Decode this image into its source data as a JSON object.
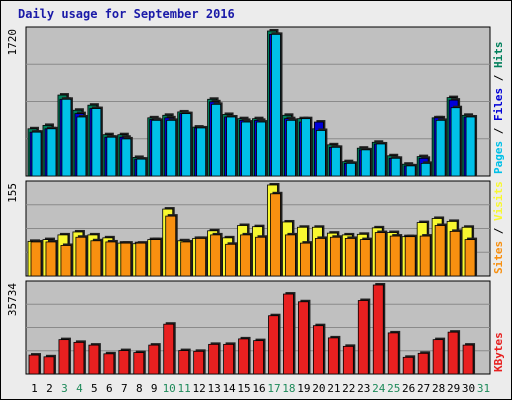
{
  "title": "Daily usage for September 2016",
  "colors": {
    "background": "#ececec",
    "plot_bg": "#c0c0c0",
    "grid": "#8a8a8a",
    "hits": "#00805c",
    "files": "#0000d8",
    "pages": "#00c0e8",
    "visits": "#f8f830",
    "sites": "#f89010",
    "kbytes": "#e82020",
    "weekend_label": "#1e8a5a",
    "weekday_label": "#000000",
    "title_text": "#1a1aa8"
  },
  "chart_data": [
    {
      "type": "bar",
      "panel": "hits-files-pages",
      "axis_max_label": "1720",
      "ylim": [
        0,
        1720
      ],
      "categories": [
        "1",
        "2",
        "3",
        "4",
        "5",
        "6",
        "7",
        "8",
        "9",
        "10",
        "11",
        "12",
        "13",
        "14",
        "15",
        "16",
        "17",
        "18",
        "19",
        "20",
        "21",
        "22",
        "23",
        "24",
        "25",
        "26",
        "27",
        "28",
        "29",
        "30",
        "31"
      ],
      "series": [
        {
          "name": "Hits",
          "color": "#00805c",
          "values": [
            560,
            600,
            960,
            780,
            840,
            490,
            490,
            220,
            690,
            720,
            760,
            580,
            910,
            730,
            680,
            680,
            1720,
            720,
            680,
            560,
            370,
            170,
            330,
            400,
            240,
            140,
            230,
            690,
            930,
            720,
            0
          ]
        },
        {
          "name": "Files",
          "color": "#0000d8",
          "values": [
            520,
            560,
            910,
            740,
            800,
            460,
            460,
            200,
            670,
            690,
            740,
            570,
            880,
            700,
            660,
            660,
            1680,
            680,
            640,
            640,
            340,
            150,
            310,
            380,
            210,
            120,
            210,
            690,
            900,
            700,
            0
          ]
        },
        {
          "name": "Pages",
          "color": "#00c0e8",
          "values": [
            520,
            560,
            910,
            700,
            800,
            460,
            440,
            200,
            660,
            660,
            740,
            570,
            850,
            700,
            640,
            640,
            1680,
            660,
            680,
            540,
            340,
            150,
            310,
            380,
            210,
            120,
            150,
            660,
            810,
            700,
            0
          ]
        }
      ],
      "legend": [
        "Pages",
        "Files",
        "Hits"
      ],
      "legend_placement": "right"
    },
    {
      "type": "bar",
      "panel": "visits-sites",
      "axis_max_label": "155",
      "ylim": [
        0,
        155
      ],
      "categories": [
        "1",
        "2",
        "3",
        "4",
        "5",
        "6",
        "7",
        "8",
        "9",
        "10",
        "11",
        "12",
        "13",
        "14",
        "15",
        "16",
        "17",
        "18",
        "19",
        "20",
        "21",
        "22",
        "23",
        "24",
        "25",
        "26",
        "27",
        "28",
        "29",
        "30",
        "31"
      ],
      "series": [
        {
          "name": "Visits",
          "color": "#f8f830",
          "values": [
            59,
            62,
            70,
            75,
            70,
            65,
            56,
            55,
            62,
            114,
            60,
            64,
            77,
            65,
            86,
            84,
            155,
            92,
            83,
            83,
            73,
            70,
            71,
            82,
            74,
            67,
            91,
            98,
            93,
            83,
            0
          ]
        },
        {
          "name": "Sites",
          "color": "#f89010",
          "values": [
            58,
            58,
            52,
            66,
            60,
            58,
            56,
            56,
            62,
            102,
            58,
            64,
            70,
            54,
            70,
            66,
            140,
            70,
            56,
            64,
            66,
            64,
            62,
            74,
            68,
            67,
            68,
            86,
            76,
            62,
            0
          ]
        }
      ],
      "legend": [
        "Sites",
        "Visits"
      ],
      "legend_placement": "right"
    },
    {
      "type": "bar",
      "panel": "kbytes",
      "axis_max_label": "35734",
      "ylim": [
        0,
        35734
      ],
      "categories": [
        "1",
        "2",
        "3",
        "4",
        "5",
        "6",
        "7",
        "8",
        "9",
        "10",
        "11",
        "12",
        "13",
        "14",
        "15",
        "16",
        "17",
        "18",
        "19",
        "20",
        "21",
        "22",
        "23",
        "24",
        "25",
        "26",
        "27",
        "28",
        "29",
        "30",
        "31"
      ],
      "series": [
        {
          "name": "KBytes",
          "color": "#e82020",
          "values": [
            7600,
            6900,
            13800,
            12700,
            11600,
            8100,
            9400,
            8600,
            11600,
            20000,
            9400,
            9100,
            11900,
            11900,
            14100,
            13400,
            23400,
            32100,
            29000,
            19400,
            14500,
            11100,
            29500,
            35734,
            16500,
            6700,
            8300,
            13800,
            16800,
            11600,
            0
          ]
        }
      ],
      "legend": [
        "KBytes"
      ],
      "legend_placement": "right"
    }
  ],
  "x_labels": [
    "1",
    "2",
    "3",
    "4",
    "5",
    "6",
    "7",
    "8",
    "9",
    "10",
    "11",
    "12",
    "13",
    "14",
    "15",
    "16",
    "17",
    "18",
    "19",
    "20",
    "21",
    "22",
    "23",
    "24",
    "25",
    "26",
    "27",
    "28",
    "29",
    "30",
    "31"
  ],
  "weekend_days": [
    "3",
    "4",
    "10",
    "11",
    "17",
    "18",
    "24",
    "25",
    "31"
  ]
}
